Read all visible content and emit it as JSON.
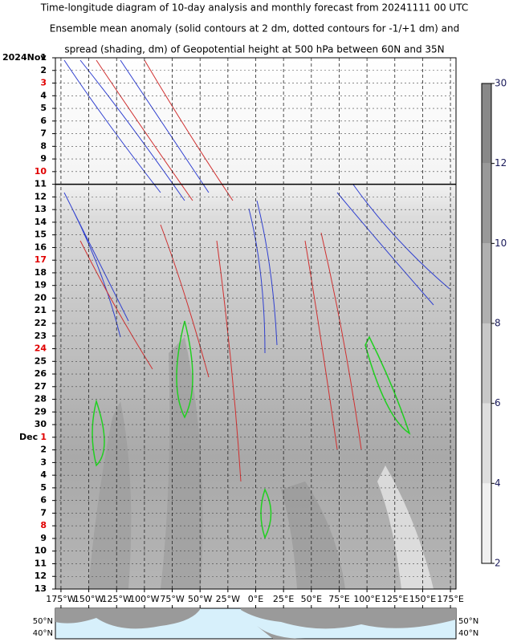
{
  "chart_data": {
    "type": "contour",
    "title": [
      "Time-longitude diagram of 10-day analysis and monthly forecast from 20241111 00 UTC",
      "Ensemble mean anomaly (solid contours at 2 dm, dotted contours for -1/+1 dm) and",
      "spread (shading, dm) of Geopotential height at 500 hPa between 60N and 35N"
    ],
    "xlim": [
      -180,
      180
    ],
    "xticks": [
      {
        "value": -175,
        "label": "175°W"
      },
      {
        "value": -150,
        "label": "150°W"
      },
      {
        "value": -125,
        "label": "125°W"
      },
      {
        "value": -100,
        "label": "100°W"
      },
      {
        "value": -75,
        "label": "75°W"
      },
      {
        "value": -50,
        "label": "50°W"
      },
      {
        "value": -25,
        "label": "25°W"
      },
      {
        "value": 0,
        "label": "0°E"
      },
      {
        "value": 25,
        "label": "25°E"
      },
      {
        "value": 50,
        "label": "50°E"
      },
      {
        "value": 75,
        "label": "75°E"
      },
      {
        "value": 100,
        "label": "100°E"
      },
      {
        "value": 125,
        "label": "125°E"
      },
      {
        "value": 150,
        "label": "150°E"
      },
      {
        "value": 175,
        "label": "175°E"
      }
    ],
    "categories": [
      {
        "month": "2024Nov",
        "day": "1"
      },
      {
        "day": "2"
      },
      {
        "day": "3",
        "red": true
      },
      {
        "day": "4"
      },
      {
        "day": "5"
      },
      {
        "day": "6"
      },
      {
        "day": "7"
      },
      {
        "day": "8"
      },
      {
        "day": "9"
      },
      {
        "day": "10",
        "red": true
      },
      {
        "day": "11"
      },
      {
        "day": "12"
      },
      {
        "day": "13"
      },
      {
        "day": "14"
      },
      {
        "day": "15"
      },
      {
        "day": "16"
      },
      {
        "day": "17",
        "red": true
      },
      {
        "day": "18"
      },
      {
        "day": "19"
      },
      {
        "day": "20"
      },
      {
        "day": "21"
      },
      {
        "day": "22"
      },
      {
        "day": "23"
      },
      {
        "day": "24",
        "red": true
      },
      {
        "day": "25"
      },
      {
        "day": "26"
      },
      {
        "day": "27"
      },
      {
        "day": "28"
      },
      {
        "day": "29"
      },
      {
        "day": "30"
      },
      {
        "month": "Dec",
        "day": "1",
        "red": true
      },
      {
        "day": "2"
      },
      {
        "day": "3"
      },
      {
        "day": "4"
      },
      {
        "day": "5"
      },
      {
        "day": "6"
      },
      {
        "day": "7"
      },
      {
        "day": "8",
        "red": true
      },
      {
        "day": "9"
      },
      {
        "day": "10"
      },
      {
        "day": "11"
      },
      {
        "day": "12"
      },
      {
        "day": "13"
      }
    ],
    "colorbar": {
      "ticks": [
        2,
        4,
        6,
        8,
        10,
        12,
        30
      ]
    },
    "map": {
      "ylabels": [
        "50°N",
        "40°N"
      ]
    }
  }
}
